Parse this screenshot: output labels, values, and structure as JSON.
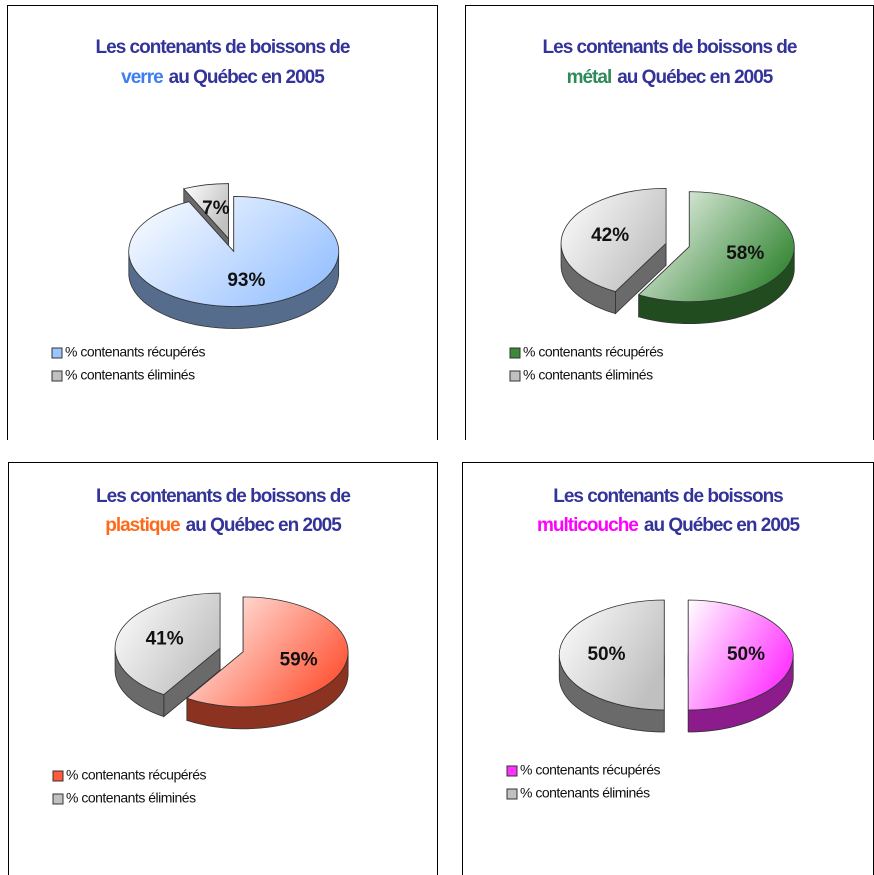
{
  "chart_data": [
    {
      "type": "pie",
      "title": {
        "before": "Les contenants de boissons de",
        "highlight": "verre",
        "after": "au Québec en 2005",
        "highlight_color": "#3d7ef0"
      },
      "categories": [
        "% contenants récupérés",
        "% contenants éliminés"
      ],
      "values": [
        93,
        7
      ],
      "value_labels": [
        "93%",
        "7%"
      ],
      "colors": [
        "#9cc4ff",
        "#c0c0c0"
      ]
    },
    {
      "type": "pie",
      "title": {
        "before": "Les contenants de boissons de",
        "highlight": "métal",
        "after": "au Québec en 2005",
        "highlight_color": "#2e8b57"
      },
      "categories": [
        "% contenants récupérés",
        "% contenants éliminés"
      ],
      "values": [
        58,
        42
      ],
      "value_labels": [
        "58%",
        "42%"
      ],
      "colors": [
        "#3a8a3a",
        "#c0c0c0"
      ]
    },
    {
      "type": "pie",
      "title": {
        "before": "Les contenants de boissons de",
        "highlight": "plastique",
        "after": "au Québec en 2005",
        "highlight_color": "#ff6a1a"
      },
      "categories": [
        "% contenants récupérés",
        "% contenants éliminés"
      ],
      "values": [
        59,
        41
      ],
      "value_labels": [
        "59%",
        "41%"
      ],
      "colors": [
        "#ff5a3c",
        "#c0c0c0"
      ]
    },
    {
      "type": "pie",
      "title": {
        "before": "Les contenants de boissons",
        "highlight": "multicouche",
        "after": "au Québec en 2005",
        "highlight_color": "#ff00ff"
      },
      "categories": [
        "% contenants récupérés",
        "% contenants éliminés"
      ],
      "values": [
        50,
        50
      ],
      "value_labels": [
        "50%",
        "50%"
      ],
      "colors": [
        "#ff33ff",
        "#c0c0c0"
      ]
    }
  ]
}
